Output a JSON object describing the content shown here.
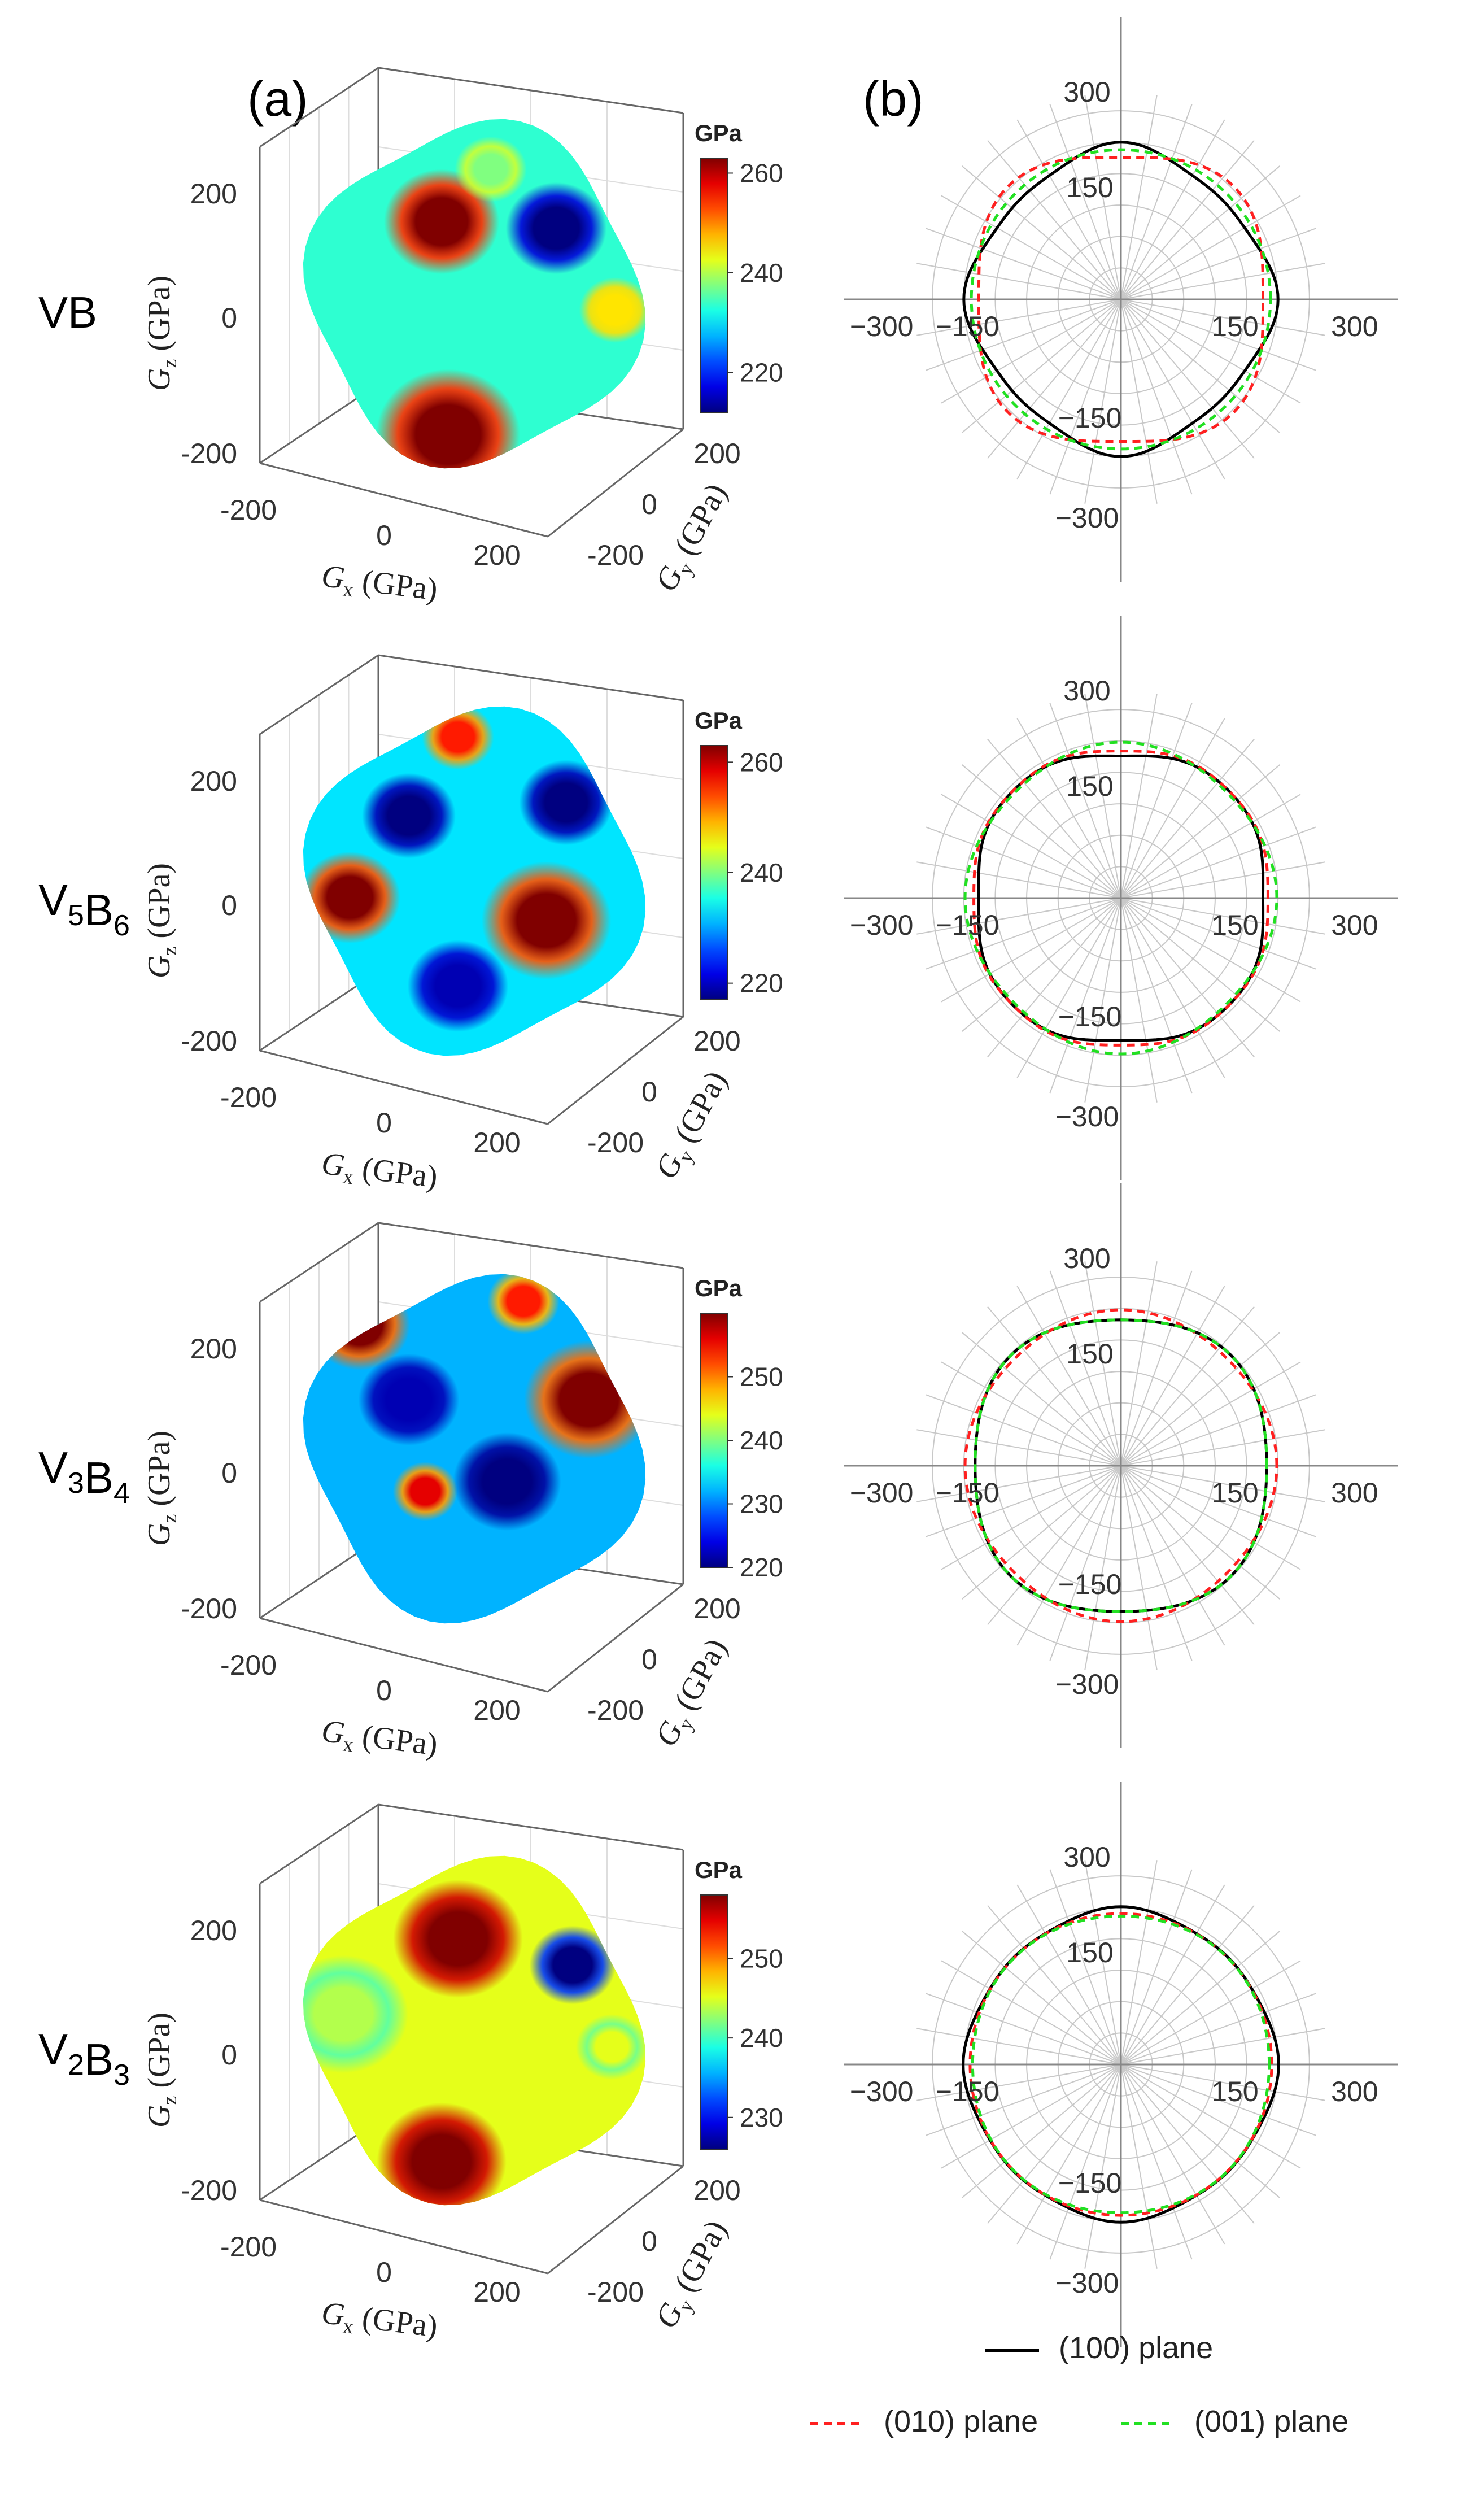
{
  "panel_labels": {
    "a": "(a)",
    "b": "(b)"
  },
  "colorbar_unit": "GPa",
  "axis_labels": {
    "x_sym": "G",
    "x_sub": "x",
    "y_sym": "G",
    "y_sub": "y",
    "z_sym": "G",
    "z_sub": "z",
    "unit": " (GPa)"
  },
  "cube_ticks": [
    "-200",
    "0",
    "200"
  ],
  "polar_ticks": {
    "pos_outer": "300",
    "pos_inner": "150",
    "neg_inner": "−150",
    "neg_outer": "−300"
  },
  "colors": {
    "plane100": "#000000",
    "plane010": "#ff2020",
    "plane001": "#22e022"
  },
  "chart_data": [
    {
      "type": "surface3d",
      "material": {
        "base": "VB",
        "parts": [
          {
            "t": "VB",
            "sub": ""
          }
        ]
      },
      "colorbar": {
        "min": 212,
        "max": 263,
        "ticks": [
          "260",
          "240",
          "220"
        ],
        "tick_values": [
          260,
          240,
          220
        ]
      },
      "axes_range": [
        -250,
        250
      ],
      "blobs": [
        {
          "u": 0.4,
          "v": 0.28,
          "r": 0.16,
          "level": 1.0
        },
        {
          "u": 0.75,
          "v": 0.3,
          "r": 0.14,
          "level": 0.0
        },
        {
          "u": 0.42,
          "v": 0.93,
          "r": 0.2,
          "level": 1.0
        },
        {
          "u": 0.93,
          "v": 0.55,
          "r": 0.1,
          "level": 0.65
        },
        {
          "u": 0.55,
          "v": 0.12,
          "r": 0.1,
          "level": 0.5
        }
      ],
      "base_level": 0.42
    },
    {
      "type": "surface3d",
      "material": {
        "base": "V5B6",
        "parts": [
          {
            "t": "V",
            "sub": "5"
          },
          {
            "t": "B",
            "sub": "6"
          }
        ]
      },
      "colorbar": {
        "min": 217,
        "max": 263,
        "ticks": [
          "260",
          "240",
          "220"
        ],
        "tick_values": [
          260,
          240,
          220
        ]
      },
      "axes_range": [
        -250,
        250
      ],
      "blobs": [
        {
          "u": 0.45,
          "v": 0.06,
          "r": 0.1,
          "level": 0.85
        },
        {
          "u": 0.12,
          "v": 0.55,
          "r": 0.14,
          "level": 1.0
        },
        {
          "u": 0.72,
          "v": 0.62,
          "r": 0.18,
          "level": 1.0
        },
        {
          "u": 0.3,
          "v": 0.3,
          "r": 0.13,
          "level": 0.0
        },
        {
          "u": 0.78,
          "v": 0.26,
          "r": 0.13,
          "level": 0.0
        },
        {
          "u": 0.45,
          "v": 0.82,
          "r": 0.14,
          "level": 0.05
        }
      ],
      "base_level": 0.35
    },
    {
      "type": "surface3d",
      "material": {
        "base": "V3B4",
        "parts": [
          {
            "t": "V",
            "sub": "3"
          },
          {
            "t": "B",
            "sub": "4"
          }
        ]
      },
      "colorbar": {
        "min": 220,
        "max": 260,
        "ticks": [
          "250",
          "240",
          "230",
          "220"
        ],
        "tick_values": [
          250,
          240,
          230,
          220
        ]
      },
      "axes_range": [
        -250,
        250
      ],
      "blobs": [
        {
          "u": 0.15,
          "v": 0.12,
          "r": 0.14,
          "level": 1.0
        },
        {
          "u": 0.85,
          "v": 0.35,
          "r": 0.18,
          "level": 1.0
        },
        {
          "u": 0.35,
          "v": 0.63,
          "r": 0.09,
          "level": 0.9
        },
        {
          "u": 0.6,
          "v": 0.6,
          "r": 0.15,
          "level": 0.0
        },
        {
          "u": 0.3,
          "v": 0.35,
          "r": 0.14,
          "level": 0.05
        },
        {
          "u": 0.65,
          "v": 0.05,
          "r": 0.1,
          "level": 0.85
        }
      ],
      "base_level": 0.3
    },
    {
      "type": "surface3d",
      "material": {
        "base": "V2B3",
        "parts": [
          {
            "t": "V",
            "sub": "2"
          },
          {
            "t": "B",
            "sub": "3"
          }
        ]
      },
      "colorbar": {
        "min": 226,
        "max": 258,
        "ticks": [
          "250",
          "240",
          "230"
        ],
        "tick_values": [
          250,
          240,
          230
        ]
      },
      "axes_range": [
        -250,
        250
      ],
      "blobs": [
        {
          "u": 0.45,
          "v": 0.22,
          "r": 0.18,
          "level": 1.0
        },
        {
          "u": 0.8,
          "v": 0.3,
          "r": 0.12,
          "level": 0.0
        },
        {
          "u": 0.4,
          "v": 0.9,
          "r": 0.18,
          "level": 1.0
        },
        {
          "u": 0.92,
          "v": 0.55,
          "r": 0.1,
          "level": 0.6
        },
        {
          "u": 0.1,
          "v": 0.45,
          "r": 0.18,
          "level": 0.55
        }
      ],
      "base_level": 0.6
    },
    {
      "type": "polar",
      "r_range": [
        0,
        310
      ],
      "r_ticks": [
        150,
        300
      ],
      "series": [
        {
          "name": "(100) plane",
          "style": "solid",
          "r0": 235,
          "a4": 12,
          "a8": 3
        },
        {
          "name": "(010) plane",
          "style": "dashed",
          "r0": 240,
          "a4": -14,
          "a8": 0
        },
        {
          "name": "(001) plane",
          "style": "dashed",
          "r0": 238,
          "a4": 0,
          "a8": 0
        }
      ]
    },
    {
      "type": "polar",
      "r_range": [
        0,
        310
      ],
      "r_ticks": [
        150,
        300
      ],
      "series": [
        {
          "name": "(100) plane",
          "style": "solid",
          "r0": 236,
          "a4": -8,
          "a8": -2
        },
        {
          "name": "(010) plane",
          "style": "dashed",
          "r0": 240,
          "a4": -4,
          "a8": -2
        },
        {
          "name": "(001) plane",
          "style": "dashed",
          "r0": 243,
          "a4": 5,
          "a8": 0
        }
      ]
    },
    {
      "type": "polar",
      "r_range": [
        0,
        310
      ],
      "r_ticks": [
        150,
        300
      ],
      "series": [
        {
          "name": "(100) plane",
          "style": "solid",
          "r0": 240,
          "a4": -8,
          "a8": 0
        },
        {
          "name": "(010) plane",
          "style": "dashed",
          "r0": 244,
          "a4": 4,
          "a8": 0
        },
        {
          "name": "(001) plane",
          "style": "dashed",
          "r0": 240,
          "a4": -8,
          "a8": 0
        }
      ]
    },
    {
      "type": "polar",
      "r_range": [
        0,
        310
      ],
      "r_ticks": [
        150,
        300
      ],
      "series": [
        {
          "name": "(100) plane",
          "style": "solid",
          "r0": 244,
          "a4": 5,
          "a8": 2
        },
        {
          "name": "(010) plane",
          "style": "dashed",
          "r0": 240,
          "a4": 0,
          "a8": 0
        },
        {
          "name": "(001) plane",
          "style": "dashed",
          "r0": 238,
          "a4": -2,
          "a8": 0
        }
      ]
    }
  ],
  "legend": {
    "items": [
      {
        "key": "plane100",
        "label": "(100) plane",
        "style": "solid"
      },
      {
        "key": "plane010",
        "label": "(010) plane",
        "style": "dashed"
      },
      {
        "key": "plane001",
        "label": "(001) plane",
        "style": "dashed"
      }
    ]
  }
}
